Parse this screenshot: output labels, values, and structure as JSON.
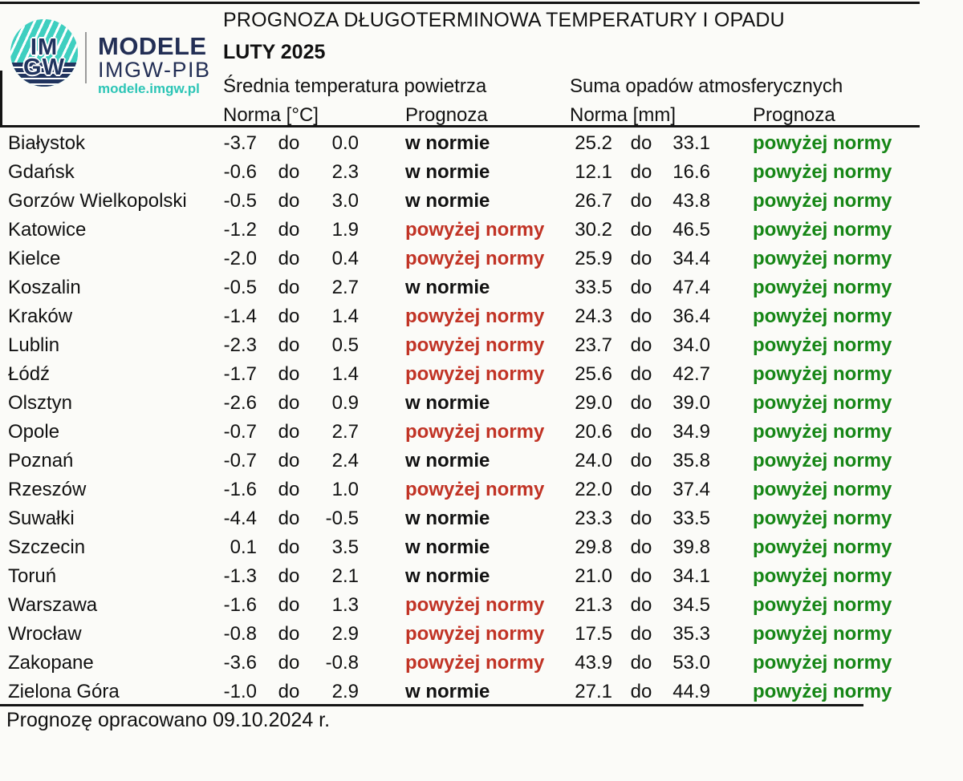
{
  "logo": {
    "circle_top": "IM",
    "circle_bottom": "GW",
    "brand": "MODELE",
    "brand_sub": "IMGW-PIB",
    "url": "modele.imgw.pl"
  },
  "colors": {
    "temp_above_norm_red": "#c13325",
    "precip_above_norm_green": "#168616",
    "body_text": "#111111",
    "rule_lines": "#141414",
    "logo_navy": "#232f55",
    "logo_teal": "#3fcfc0",
    "background": "#fbfbf8"
  },
  "chart_data": {
    "type": "table",
    "title": "PROGNOZA DŁUGOTERMINOWA TEMPERATURY I OPADU",
    "subtitle": "LUTY 2025",
    "temp_section": "Średnia temperatura powietrza",
    "precip_section": "Suma opadów atmosferycznych",
    "temp_norm_label": "Norma [°C]",
    "temp_forecast_label": "Prognoza",
    "precip_norm_label": "Norma [mm]",
    "precip_forecast_label": "Prognoza",
    "range_word": "do",
    "footer_note": "Prognozę opracowano 09.10.2024 r.",
    "rows": [
      {
        "city": "Białystok",
        "t_low": "-3.7",
        "t_high": "0.0",
        "t_prog": "w normie",
        "t_status": "normal",
        "p_low": "25.2",
        "p_high": "33.1",
        "p_prog": "powyżej normy",
        "p_status": "above"
      },
      {
        "city": "Gdańsk",
        "t_low": "-0.6",
        "t_high": "2.3",
        "t_prog": "w normie",
        "t_status": "normal",
        "p_low": "12.1",
        "p_high": "16.6",
        "p_prog": "powyżej normy",
        "p_status": "above"
      },
      {
        "city": "Gorzów Wielkopolski",
        "t_low": "-0.5",
        "t_high": "3.0",
        "t_prog": "w normie",
        "t_status": "normal",
        "p_low": "26.7",
        "p_high": "43.8",
        "p_prog": "powyżej normy",
        "p_status": "above"
      },
      {
        "city": "Katowice",
        "t_low": "-1.2",
        "t_high": "1.9",
        "t_prog": "powyżej normy",
        "t_status": "above",
        "p_low": "30.2",
        "p_high": "46.5",
        "p_prog": "powyżej normy",
        "p_status": "above"
      },
      {
        "city": "Kielce",
        "t_low": "-2.0",
        "t_high": "0.4",
        "t_prog": "powyżej normy",
        "t_status": "above",
        "p_low": "25.9",
        "p_high": "34.4",
        "p_prog": "powyżej normy",
        "p_status": "above"
      },
      {
        "city": "Koszalin",
        "t_low": "-0.5",
        "t_high": "2.7",
        "t_prog": "w normie",
        "t_status": "normal",
        "p_low": "33.5",
        "p_high": "47.4",
        "p_prog": "powyżej normy",
        "p_status": "above"
      },
      {
        "city": "Kraków",
        "t_low": "-1.4",
        "t_high": "1.4",
        "t_prog": "powyżej normy",
        "t_status": "above",
        "p_low": "24.3",
        "p_high": "36.4",
        "p_prog": "powyżej normy",
        "p_status": "above"
      },
      {
        "city": "Lublin",
        "t_low": "-2.3",
        "t_high": "0.5",
        "t_prog": "powyżej normy",
        "t_status": "above",
        "p_low": "23.7",
        "p_high": "34.0",
        "p_prog": "powyżej normy",
        "p_status": "above"
      },
      {
        "city": "Łódź",
        "t_low": "-1.7",
        "t_high": "1.4",
        "t_prog": "powyżej normy",
        "t_status": "above",
        "p_low": "25.6",
        "p_high": "42.7",
        "p_prog": "powyżej normy",
        "p_status": "above"
      },
      {
        "city": "Olsztyn",
        "t_low": "-2.6",
        "t_high": "0.9",
        "t_prog": "w normie",
        "t_status": "normal",
        "p_low": "29.0",
        "p_high": "39.0",
        "p_prog": "powyżej normy",
        "p_status": "above"
      },
      {
        "city": "Opole",
        "t_low": "-0.7",
        "t_high": "2.7",
        "t_prog": "powyżej normy",
        "t_status": "above",
        "p_low": "20.6",
        "p_high": "34.9",
        "p_prog": "powyżej normy",
        "p_status": "above"
      },
      {
        "city": "Poznań",
        "t_low": "-0.7",
        "t_high": "2.4",
        "t_prog": "w normie",
        "t_status": "normal",
        "p_low": "24.0",
        "p_high": "35.8",
        "p_prog": "powyżej normy",
        "p_status": "above"
      },
      {
        "city": "Rzeszów",
        "t_low": "-1.6",
        "t_high": "1.0",
        "t_prog": "powyżej normy",
        "t_status": "above",
        "p_low": "22.0",
        "p_high": "37.4",
        "p_prog": "powyżej normy",
        "p_status": "above"
      },
      {
        "city": "Suwałki",
        "t_low": "-4.4",
        "t_high": "-0.5",
        "t_prog": "w normie",
        "t_status": "normal",
        "p_low": "23.3",
        "p_high": "33.5",
        "p_prog": "powyżej normy",
        "p_status": "above"
      },
      {
        "city": "Szczecin",
        "t_low": "0.1",
        "t_high": "3.5",
        "t_prog": "w normie",
        "t_status": "normal",
        "p_low": "29.8",
        "p_high": "39.8",
        "p_prog": "powyżej normy",
        "p_status": "above"
      },
      {
        "city": "Toruń",
        "t_low": "-1.3",
        "t_high": "2.1",
        "t_prog": "w normie",
        "t_status": "normal",
        "p_low": "21.0",
        "p_high": "34.1",
        "p_prog": "powyżej normy",
        "p_status": "above"
      },
      {
        "city": "Warszawa",
        "t_low": "-1.6",
        "t_high": "1.3",
        "t_prog": "powyżej normy",
        "t_status": "above",
        "p_low": "21.3",
        "p_high": "34.5",
        "p_prog": "powyżej normy",
        "p_status": "above"
      },
      {
        "city": "Wrocław",
        "t_low": "-0.8",
        "t_high": "2.9",
        "t_prog": "powyżej normy",
        "t_status": "above",
        "p_low": "17.5",
        "p_high": "35.3",
        "p_prog": "powyżej normy",
        "p_status": "above"
      },
      {
        "city": "Zakopane",
        "t_low": "-3.6",
        "t_high": "-0.8",
        "t_prog": "powyżej normy",
        "t_status": "above",
        "p_low": "43.9",
        "p_high": "53.0",
        "p_prog": "powyżej normy",
        "p_status": "above"
      },
      {
        "city": "Zielona Góra",
        "t_low": "-1.0",
        "t_high": "2.9",
        "t_prog": "w normie",
        "t_status": "normal",
        "p_low": "27.1",
        "p_high": "44.9",
        "p_prog": "powyżej normy",
        "p_status": "above"
      }
    ]
  }
}
